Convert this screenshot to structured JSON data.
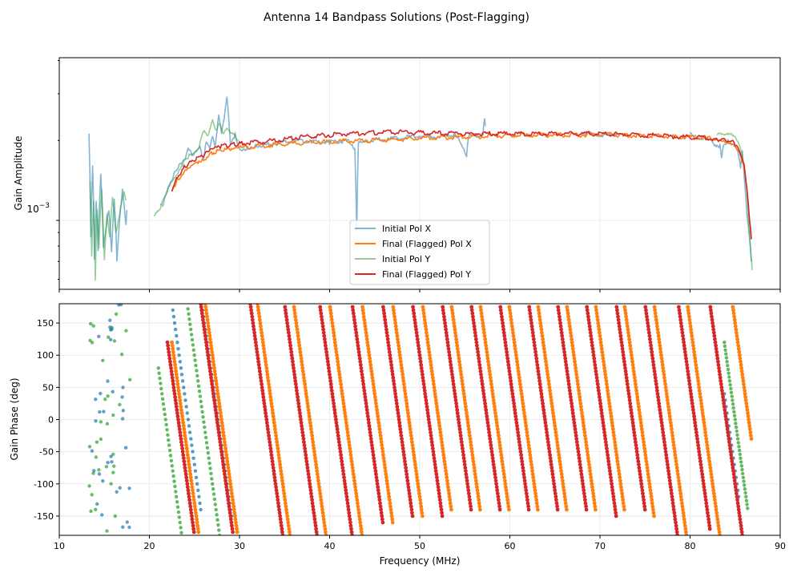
{
  "title": "Antenna 14 Bandpass Solutions (Post-Flagging)",
  "colors": {
    "initial_x": "#1f77b4",
    "final_x": "#ff7f0e",
    "initial_y": "#2ca02c",
    "final_y": "#d62728",
    "grid": "#e0e0e0"
  },
  "chart_data": [
    {
      "type": "line",
      "panel": "amplitude",
      "ylabel": "Gain Amplitude",
      "yscale": "log",
      "ylim": [
        0.00055,
        0.0041
      ],
      "xlim": [
        10,
        90
      ],
      "y_tick_label_main": "10",
      "y_tick_label_exp": "−3",
      "grid": true,
      "legend_position": "lower-center",
      "series": [
        {
          "name": "Initial Pol X",
          "color": "#1f77b4",
          "alpha": 0.55,
          "x": [
            13.3,
            13.5,
            13.7,
            13.9,
            14.1,
            14.3,
            14.6,
            14.9,
            15.2,
            15.5,
            15.8,
            16.1,
            16.4,
            17.0,
            17.4,
            17.6,
            21.2,
            21.8,
            22.3,
            23.0,
            23.6,
            24.0,
            24.3,
            24.8,
            25.2,
            25.6,
            26.0,
            26.3,
            26.7,
            27.0,
            27.3,
            27.7,
            28.0,
            28.3,
            28.6,
            29.0,
            29.5,
            30.0,
            31,
            32,
            34,
            36,
            38,
            40,
            42,
            42.8,
            43.0,
            43.2,
            44,
            46,
            48,
            50,
            52,
            54,
            55.2,
            55.4,
            55.6,
            57.0,
            57.2,
            57.4,
            60,
            64,
            68,
            70,
            72,
            76,
            80,
            82,
            83.3,
            83.5,
            83.7,
            84.2,
            84.8,
            85.3,
            85.6,
            85.8,
            86.0,
            86.3,
            86.6,
            86.8
          ],
          "y": [
            0.0021,
            0.00085,
            0.0016,
            0.0007,
            0.0012,
            0.00078,
            0.0015,
            0.0008,
            0.00095,
            0.0011,
            0.00075,
            0.0012,
            0.0007,
            0.0013,
            0.00095,
            0.0012,
            0.00115,
            0.00125,
            0.0014,
            0.00155,
            0.00165,
            0.0017,
            0.00185,
            0.00175,
            0.0018,
            0.0019,
            0.0017,
            0.002,
            0.0019,
            0.0021,
            0.0019,
            0.0025,
            0.0021,
            0.0024,
            0.0029,
            0.0019,
            0.0021,
            0.00185,
            0.00188,
            0.0019,
            0.00195,
            0.002,
            0.00198,
            0.00197,
            0.00199,
            0.00185,
            0.0009,
            0.00195,
            0.002,
            0.00202,
            0.00205,
            0.00208,
            0.00208,
            0.0021,
            0.00175,
            0.00205,
            0.00208,
            0.0021,
            0.0024,
            0.0021,
            0.0021,
            0.00215,
            0.00215,
            0.0021,
            0.00212,
            0.0021,
            0.0021,
            0.002,
            0.0019,
            0.0017,
            0.0019,
            0.002,
            0.00195,
            0.00185,
            0.0016,
            0.00185,
            0.0015,
            0.00105,
            0.00085,
            0.0007
          ]
        },
        {
          "name": "Final (Flagged) Pol X",
          "color": "#ff7f0e",
          "alpha": 1.0,
          "x": [
            22.5,
            23,
            24,
            25,
            26,
            27,
            28,
            29,
            30,
            32,
            34,
            36,
            38,
            40,
            42,
            44,
            46,
            48,
            50,
            52,
            54,
            56,
            58,
            60,
            62,
            64,
            66,
            68,
            70,
            72,
            74,
            76,
            78,
            80,
            82,
            83,
            84,
            85,
            85.5,
            86,
            86.3,
            86.6,
            86.8
          ],
          "y": [
            0.00128,
            0.0014,
            0.00155,
            0.00165,
            0.0017,
            0.0018,
            0.00183,
            0.00185,
            0.00187,
            0.0019,
            0.00193,
            0.00195,
            0.00197,
            0.00198,
            0.00199,
            0.002,
            0.00201,
            0.00202,
            0.00204,
            0.00205,
            0.00206,
            0.00207,
            0.00208,
            0.00209,
            0.0021,
            0.0021,
            0.0021,
            0.0021,
            0.00211,
            0.0021,
            0.00209,
            0.00208,
            0.00207,
            0.00206,
            0.00204,
            0.00202,
            0.002,
            0.00192,
            0.0018,
            0.0016,
            0.0013,
            0.001,
            0.00085
          ]
        },
        {
          "name": "Initial Pol Y",
          "color": "#2ca02c",
          "alpha": 0.5,
          "x": [
            13.4,
            13.6,
            13.8,
            14.0,
            14.2,
            14.4,
            14.7,
            15.0,
            15.3,
            15.6,
            15.9,
            16.3,
            17.2,
            17.5,
            20.5,
            21.0,
            21.5,
            22.0,
            22.6,
            23.2,
            23.8,
            24.4,
            25.0,
            25.5,
            26.0,
            26.5,
            27.0,
            27.4,
            27.8,
            28.2,
            28.6,
            29.2,
            30,
            34,
            40,
            50,
            60,
            70,
            80,
            83,
            84,
            84.5,
            85,
            85.5,
            86,
            86.3,
            86.5,
            86.7,
            86.9
          ],
          "y": [
            0.0014,
            0.00075,
            0.0012,
            0.0006,
            0.0011,
            0.0008,
            0.0013,
            0.0007,
            0.00105,
            0.00085,
            0.0012,
            0.0009,
            0.0013,
            0.00115,
            0.00105,
            0.0011,
            0.00115,
            0.0013,
            0.0014,
            0.0015,
            0.00165,
            0.00175,
            0.0018,
            0.0019,
            0.0022,
            0.0021,
            0.0024,
            0.0022,
            0.0023,
            0.0021,
            0.0022,
            0.0021,
            0.002,
            0.00205,
            0.00207,
            0.00209,
            0.00211,
            0.00212,
            0.00212,
            0.0021,
            0.0021,
            0.0021,
            0.00205,
            0.0019,
            0.0016,
            0.0013,
            0.001,
            0.0008,
            0.00065
          ]
        },
        {
          "name": "Final (Flagged) Pol Y",
          "color": "#d62728",
          "alpha": 1.0,
          "x": [
            22.5,
            23,
            24,
            25,
            26,
            27,
            28,
            29,
            30,
            32,
            34,
            36,
            38,
            40,
            42,
            44,
            46,
            48,
            50,
            52,
            54,
            56,
            58,
            60,
            62,
            64,
            66,
            68,
            70,
            72,
            74,
            76,
            78,
            80,
            82,
            83,
            84,
            85,
            85.5,
            86,
            86.3,
            86.6,
            86.8
          ],
          "y": [
            0.0013,
            0.00145,
            0.0016,
            0.00168,
            0.00175,
            0.00185,
            0.0019,
            0.00192,
            0.00195,
            0.00197,
            0.002,
            0.00205,
            0.00208,
            0.0021,
            0.00212,
            0.00213,
            0.00215,
            0.00215,
            0.00214,
            0.00213,
            0.00212,
            0.00212,
            0.00212,
            0.00212,
            0.00212,
            0.00212,
            0.00212,
            0.00212,
            0.00212,
            0.00211,
            0.0021,
            0.00209,
            0.00207,
            0.00206,
            0.00204,
            0.00202,
            0.002,
            0.00195,
            0.0018,
            0.0016,
            0.0013,
            0.001,
            0.00085
          ]
        }
      ]
    },
    {
      "type": "scatter",
      "panel": "phase",
      "xlabel": "Frequency (MHz)",
      "ylabel": "Gain Phase (deg)",
      "xlim": [
        10,
        90
      ],
      "ylim": [
        -180,
        180
      ],
      "xticks": [
        10,
        20,
        30,
        40,
        50,
        60,
        70,
        80,
        90
      ],
      "yticks": [
        -150,
        -100,
        -50,
        0,
        50,
        100,
        150
      ],
      "grid": true,
      "phase_wraps": {
        "final_x_crossings_mhz": [
          23.7,
          28.0,
          33.8,
          37.8,
          41.8,
          45.4,
          48.8,
          52.1,
          55.3,
          58.5,
          61.7,
          64.9,
          68.1,
          71.3,
          74.5,
          77.8,
          81.5,
          86.5
        ],
        "final_y_crossings_mhz": [
          23.2,
          27.5,
          33.0,
          36.8,
          40.7,
          44.3,
          47.7,
          51.0,
          54.3,
          57.5,
          60.7,
          63.9,
          67.1,
          70.3,
          73.6,
          76.8,
          80.5,
          84.0
        ],
        "wrap_width_mhz": 3.6,
        "band_start_mhz": 21.5,
        "band_end_mhz": 86.8
      },
      "series": [
        {
          "name": "Initial Pol X",
          "color": "#1f77b4"
        },
        {
          "name": "Final (Flagged) Pol X",
          "color": "#ff7f0e"
        },
        {
          "name": "Initial Pol Y",
          "color": "#2ca02c"
        },
        {
          "name": "Final (Flagged) Pol Y",
          "color": "#d62728"
        }
      ]
    }
  ]
}
